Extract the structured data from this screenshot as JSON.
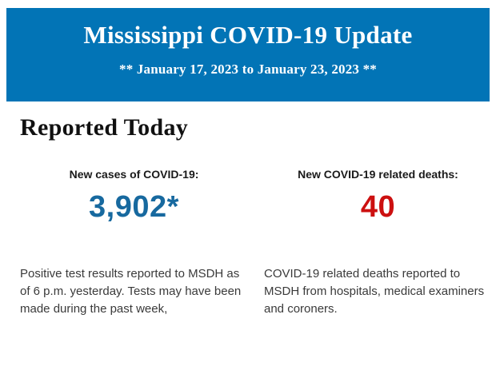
{
  "header": {
    "title": "Mississippi COVID-19 Update",
    "subtitle": "** January 17, 2023 to January 23, 2023 **"
  },
  "section": {
    "heading": "Reported Today"
  },
  "stats": [
    {
      "label": "New cases of COVID-19:",
      "value": "3,902*",
      "value_color": "#17699f",
      "description": "Positive test results reported to MSDH as of 6 p.m. yesterday. Tests may have been made during the past week,"
    },
    {
      "label": "New COVID-19 related deaths:",
      "value": "40",
      "value_color": "#cc1010",
      "description": "COVID-19 related deaths reported to MSDH from hospitals, medical examiners and coroners."
    }
  ],
  "colors": {
    "banner_background": "#0274b6",
    "banner_text": "#ffffff"
  }
}
